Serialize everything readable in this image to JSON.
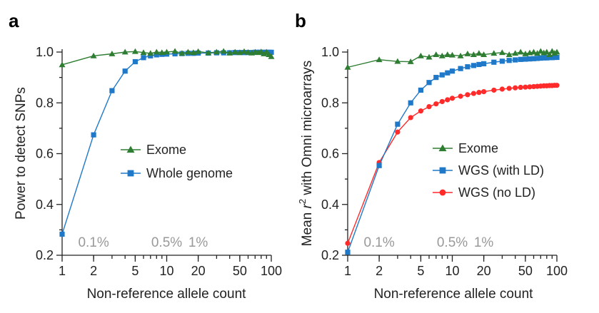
{
  "chart_data": [
    {
      "panel": "a",
      "type": "line",
      "xlabel": "Non-reference allele count",
      "ylabel": "Power to detect SNPs",
      "xscale": "log",
      "xlim": [
        1,
        100
      ],
      "ylim": [
        0.2,
        1.0
      ],
      "xticks": [
        1,
        2,
        5,
        10,
        20,
        50,
        100
      ],
      "yticks": [
        0.2,
        0.4,
        0.6,
        0.8,
        1.0
      ],
      "annotations": [
        {
          "text": "0.1%",
          "x": 2
        },
        {
          "text": "0.5%",
          "x": 10
        },
        {
          "text": "1%",
          "x": 20
        }
      ],
      "legend_position": "center-right",
      "series": [
        {
          "name": "Exome",
          "marker": "triangle",
          "color": "#2e7d32",
          "x": [
            1,
            2,
            3,
            4,
            5,
            6,
            7,
            8,
            9,
            10,
            12,
            14,
            16,
            18,
            20,
            25,
            30,
            35,
            40,
            45,
            50,
            55,
            60,
            65,
            70,
            75,
            80,
            85,
            90,
            95,
            100
          ],
          "values": [
            0.95,
            0.985,
            0.993,
            1.0,
            1.002,
            0.998,
            0.995,
            1.0,
            0.998,
            1.0,
            1.003,
            0.995,
            1.0,
            0.998,
            1.002,
            0.997,
            1.0,
            1.003,
            0.996,
            1.0,
            0.998,
            1.002,
            0.999,
            0.996,
            1.0,
            0.998,
            1.001,
            0.993,
            1.0,
            0.99,
            0.982
          ]
        },
        {
          "name": "Whole genome",
          "marker": "square",
          "color": "#1f78c8",
          "x": [
            1,
            2,
            3,
            4,
            5,
            6,
            7,
            8,
            9,
            10,
            12,
            14,
            16,
            18,
            20,
            25,
            30,
            35,
            40,
            45,
            50,
            55,
            60,
            65,
            70,
            75,
            80,
            85,
            90,
            95,
            100
          ],
          "values": [
            0.283,
            0.674,
            0.848,
            0.925,
            0.962,
            0.978,
            0.985,
            0.989,
            0.991,
            0.992,
            0.993,
            0.994,
            0.995,
            0.995,
            0.996,
            0.996,
            0.997,
            0.997,
            0.997,
            0.998,
            0.998,
            0.998,
            0.998,
            0.998,
            0.999,
            0.999,
            0.999,
            0.999,
            0.999,
            0.999,
            0.999
          ]
        }
      ]
    },
    {
      "panel": "b",
      "type": "line",
      "xlabel": "Non-reference allele count",
      "ylabel": "Mean r² with Omni microarrays",
      "xscale": "log",
      "xlim": [
        1,
        100
      ],
      "ylim": [
        0.2,
        1.0
      ],
      "xticks": [
        1,
        2,
        5,
        10,
        20,
        50,
        100
      ],
      "yticks": [
        0.2,
        0.4,
        0.6,
        0.8,
        1.0
      ],
      "annotations": [
        {
          "text": "0.1%",
          "x": 2
        },
        {
          "text": "0.5%",
          "x": 10
        },
        {
          "text": "1%",
          "x": 20
        }
      ],
      "legend_position": "bottom-right",
      "series": [
        {
          "name": "Exome",
          "marker": "triangle",
          "color": "#2e7d32",
          "x": [
            1,
            2,
            3,
            4,
            5,
            6,
            7,
            8,
            9,
            10,
            12,
            14,
            16,
            18,
            20,
            25,
            30,
            35,
            40,
            45,
            50,
            55,
            60,
            65,
            70,
            75,
            80,
            85,
            90,
            95,
            100
          ],
          "values": [
            0.94,
            0.97,
            0.963,
            0.962,
            0.985,
            0.98,
            0.99,
            0.985,
            0.99,
            0.988,
            0.985,
            0.993,
            0.99,
            0.995,
            0.99,
            0.995,
            0.998,
            0.99,
            0.995,
            1.0,
            0.993,
            0.997,
            1.0,
            0.995,
            1.003,
            0.997,
            1.0,
            0.99,
            1.003,
            0.995,
            1.0
          ]
        },
        {
          "name": "WGS (with LD)",
          "marker": "square",
          "color": "#1f78c8",
          "x": [
            1,
            2,
            3,
            4,
            5,
            6,
            7,
            8,
            9,
            10,
            12,
            14,
            16,
            18,
            20,
            25,
            30,
            35,
            40,
            45,
            50,
            55,
            60,
            65,
            70,
            75,
            80,
            85,
            90,
            95,
            100
          ],
          "values": [
            0.212,
            0.553,
            0.716,
            0.8,
            0.85,
            0.88,
            0.9,
            0.91,
            0.918,
            0.925,
            0.935,
            0.942,
            0.947,
            0.951,
            0.954,
            0.96,
            0.964,
            0.967,
            0.969,
            0.971,
            0.972,
            0.973,
            0.974,
            0.975,
            0.976,
            0.977,
            0.977,
            0.978,
            0.978,
            0.979,
            0.979
          ]
        },
        {
          "name": "WGS (no LD)",
          "marker": "circle",
          "color": "#ff2a2a",
          "x": [
            1,
            2,
            3,
            4,
            5,
            6,
            7,
            8,
            9,
            10,
            12,
            14,
            16,
            18,
            20,
            25,
            30,
            35,
            40,
            45,
            50,
            55,
            60,
            65,
            70,
            75,
            80,
            85,
            90,
            95,
            100
          ],
          "values": [
            0.247,
            0.565,
            0.685,
            0.742,
            0.768,
            0.785,
            0.796,
            0.805,
            0.812,
            0.818,
            0.826,
            0.832,
            0.837,
            0.841,
            0.844,
            0.85,
            0.854,
            0.857,
            0.859,
            0.861,
            0.862,
            0.863,
            0.864,
            0.865,
            0.866,
            0.867,
            0.867,
            0.868,
            0.868,
            0.869,
            0.869
          ]
        }
      ]
    }
  ]
}
